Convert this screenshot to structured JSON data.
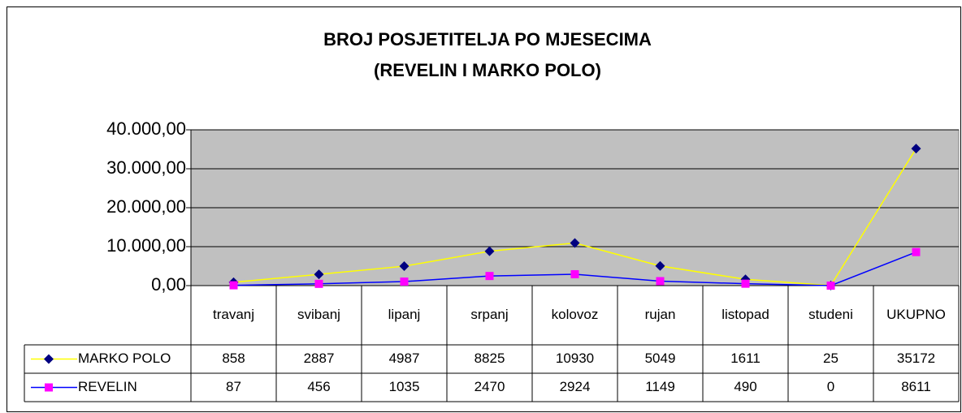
{
  "chart_data": {
    "type": "line",
    "title": "BROJ POSJETITELJA PO MJESECIMA",
    "subtitle": "(REVELIN I MARKO POLO)",
    "categories": [
      "travanj",
      "svibanj",
      "lipanj",
      "srpanj",
      "kolovoz",
      "rujan",
      "listopad",
      "studeni",
      "UKUPNO"
    ],
    "series": [
      {
        "name": "MARKO POLO",
        "color": "#ffff00",
        "marker_color": "#000080",
        "marker": "diamond",
        "values": [
          858,
          2887,
          4987,
          8825,
          10930,
          5049,
          1611,
          25,
          35172
        ]
      },
      {
        "name": "REVELIN",
        "color": "#0000ff",
        "marker_color": "#ff00ff",
        "marker": "square",
        "values": [
          87,
          456,
          1035,
          2470,
          2924,
          1149,
          490,
          0,
          8611
        ]
      }
    ],
    "ylim": [
      0,
      40000
    ],
    "yticks": [
      {
        "value": 0,
        "label": "0,00"
      },
      {
        "value": 10000,
        "label": "10.000,00"
      },
      {
        "value": 20000,
        "label": "20.000,00"
      },
      {
        "value": 30000,
        "label": "30.000,00"
      },
      {
        "value": 40000,
        "label": "40.000,00"
      }
    ],
    "grid": true,
    "data_table": true
  }
}
